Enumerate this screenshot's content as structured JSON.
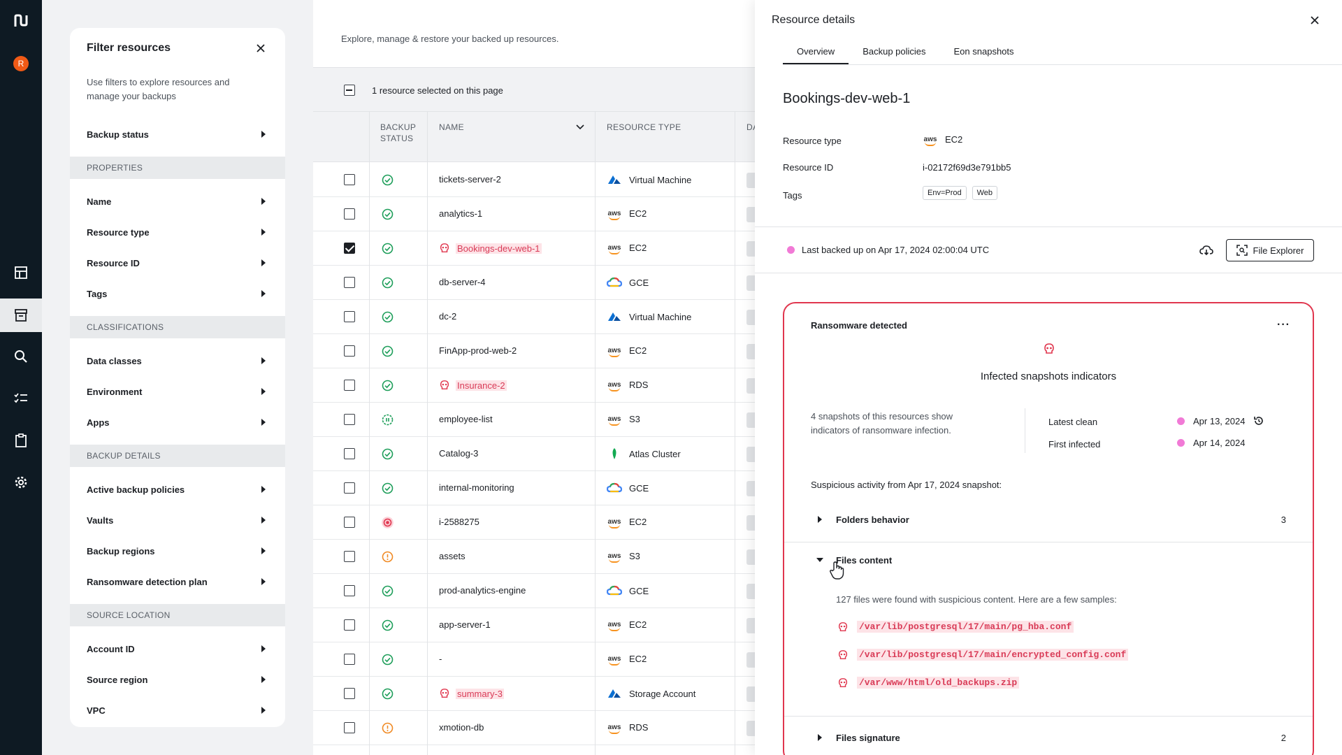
{
  "app": {
    "logo": "N",
    "avatar_initial": "R"
  },
  "rail": {
    "icons": [
      "dashboard-icon",
      "archive-icon",
      "search-icon",
      "checklist-icon",
      "clipboard-icon",
      "settings-icon"
    ],
    "active": "archive-icon"
  },
  "filter": {
    "title": "Filter resources",
    "description": "Use filters to explore resources and manage your backups",
    "backup_status": "Backup status",
    "sections": {
      "properties": "PROPERTIES",
      "classifications": "CLASSIFICATIONS",
      "backup_details": "BACKUP DETAILS",
      "source_location": "SOURCE LOCATION"
    },
    "properties_items": [
      "Name",
      "Resource type",
      "Resource ID",
      "Tags"
    ],
    "classification_items": [
      "Data classes",
      "Environment",
      "Apps"
    ],
    "backup_items": [
      "Active backup policies",
      "Vaults",
      "Backup regions",
      "Ransomware detection plan"
    ],
    "source_items": [
      "Account ID",
      "Source region",
      "VPC"
    ]
  },
  "main": {
    "subtitle": "Explore, manage & restore your backed up resources.",
    "selection_text": "1 resource selected on this page",
    "columns": {
      "backup_status_1": "BACKUP",
      "backup_status_2": "STATUS",
      "name": "NAME",
      "resource_type": "RESOURCE TYPE",
      "da": "DA"
    },
    "rows": [
      {
        "name": "tickets-server-2",
        "type": "Virtual Machine",
        "icon": "azure",
        "status": "ok",
        "checked": false,
        "infected": false
      },
      {
        "name": "analytics-1",
        "type": "EC2",
        "icon": "aws",
        "status": "ok",
        "checked": false,
        "infected": false
      },
      {
        "name": "Bookings-dev-web-1",
        "type": "EC2",
        "icon": "aws",
        "status": "ok",
        "checked": true,
        "infected": true
      },
      {
        "name": "db-server-4",
        "type": "GCE",
        "icon": "gcp",
        "status": "ok",
        "checked": false,
        "infected": false
      },
      {
        "name": "dc-2",
        "type": "Virtual Machine",
        "icon": "azure",
        "status": "ok",
        "checked": false,
        "infected": false
      },
      {
        "name": "FinApp-prod-web-2",
        "type": "EC2",
        "icon": "aws",
        "status": "ok",
        "checked": false,
        "infected": false
      },
      {
        "name": "Insurance-2",
        "type": "RDS",
        "icon": "aws",
        "status": "ok",
        "checked": false,
        "infected": true
      },
      {
        "name": "employee-list",
        "type": "S3",
        "icon": "aws",
        "status": "paused",
        "checked": false,
        "infected": false
      },
      {
        "name": "Catalog-3",
        "type": "Atlas Cluster",
        "icon": "mongo",
        "status": "ok",
        "checked": false,
        "infected": false
      },
      {
        "name": "internal-monitoring",
        "type": "GCE",
        "icon": "gcp",
        "status": "ok",
        "checked": false,
        "infected": false
      },
      {
        "name": "i-2588275",
        "type": "EC2",
        "icon": "aws",
        "status": "error",
        "checked": false,
        "infected": false
      },
      {
        "name": "assets",
        "type": "S3",
        "icon": "aws",
        "status": "warn",
        "checked": false,
        "infected": false
      },
      {
        "name": "prod-analytics-engine",
        "type": "GCE",
        "icon": "gcp",
        "status": "ok",
        "checked": false,
        "infected": false
      },
      {
        "name": "app-server-1",
        "type": "EC2",
        "icon": "aws",
        "status": "ok",
        "checked": false,
        "infected": false
      },
      {
        "name": "-",
        "type": "EC2",
        "icon": "aws",
        "status": "ok",
        "checked": false,
        "infected": false
      },
      {
        "name": "summary-3",
        "type": "Storage Account",
        "icon": "azure",
        "status": "ok",
        "checked": false,
        "infected": true
      },
      {
        "name": "xmotion-db",
        "type": "RDS",
        "icon": "aws",
        "status": "warn",
        "checked": false,
        "infected": false
      }
    ]
  },
  "details": {
    "title": "Resource details",
    "tabs": [
      "Overview",
      "Backup policies",
      "Eon snapshots"
    ],
    "resource_name": "Bookings-dev-web-1",
    "labels": {
      "type": "Resource type",
      "id": "Resource ID",
      "tags": "Tags"
    },
    "aws_label": "aws",
    "resource_type": "EC2",
    "resource_id": "i-02172f69d3e791bb5",
    "tags": [
      "Env=Prod",
      "Web"
    ],
    "last_backup": "Last backed up on Apr 17, 2024 02:00:04 UTC",
    "file_explorer": "File Explorer",
    "ransomware": {
      "title": "Ransomware detected",
      "heading": "Infected snapshots indicators",
      "description": "4 snapshots of this resources show indicators of ransomware infection.",
      "latest_clean_label": "Latest clean",
      "latest_clean_date": "Apr 13, 2024",
      "first_infected_label": "First infected",
      "first_infected_date": "Apr 14, 2024",
      "suspicious": "Suspicious activity from Apr 17, 2024 snapshot:",
      "folders_label": "Folders behavior",
      "folders_count": "3",
      "files_label": "Files content",
      "files_desc": "127 files were found with suspicious content. Here are a few samples:",
      "files": [
        "/var/lib/postgresql/17/main/pg_hba.conf",
        "/var/lib/postgresql/17/main/encrypted_config.conf",
        "/var/www/html/old_backups.zip"
      ],
      "signature_label": "Files signature",
      "signature_count": "2"
    }
  },
  "colors": {
    "danger": "#e0364e",
    "ok": "#1e9e5a",
    "warn": "#f08a24",
    "pink": "#f17ad6",
    "rail": "#0e1a23"
  }
}
